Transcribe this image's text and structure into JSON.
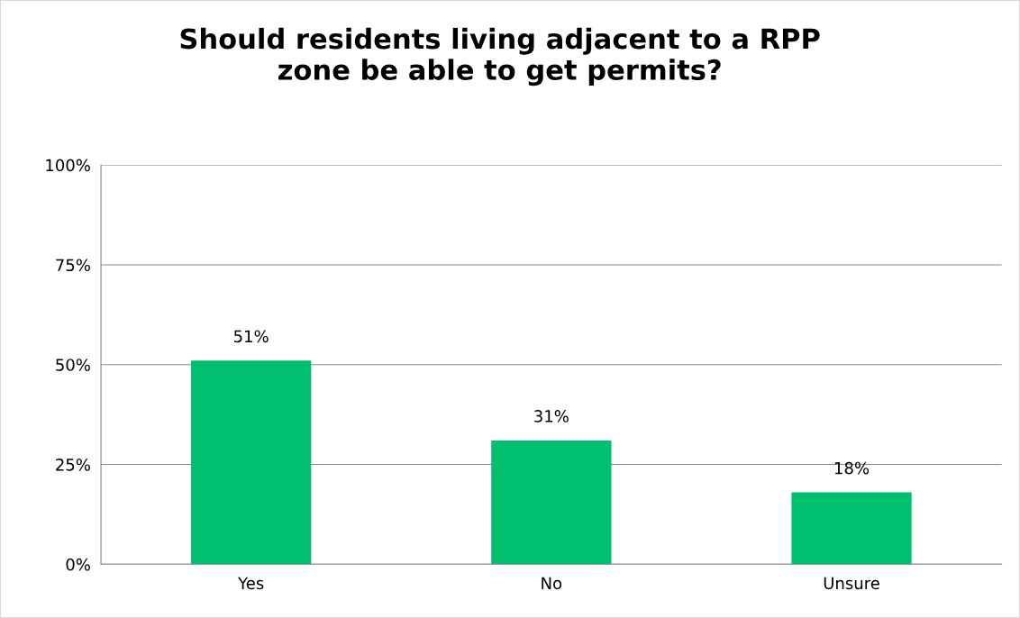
{
  "chart_data": {
    "type": "bar",
    "title": "Should residents living adjacent to a RPP\nzone be able to get permits?",
    "categories": [
      "Yes",
      "No",
      "Unsure"
    ],
    "values": [
      51,
      31,
      18
    ],
    "value_labels": [
      "51%",
      "31%",
      "18%"
    ],
    "color": "#00bf6f",
    "ylim": [
      0,
      100
    ],
    "yticks": [
      {
        "value": 0,
        "label": "0%"
      },
      {
        "value": 25,
        "label": "25%"
      },
      {
        "value": 50,
        "label": "50%"
      },
      {
        "value": 75,
        "label": "75%"
      },
      {
        "value": 100,
        "label": "100%"
      }
    ],
    "grid": "y",
    "legend": false
  }
}
